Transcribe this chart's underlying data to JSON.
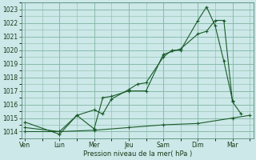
{
  "background_color": "#cce8e8",
  "grid_color": "#88bbaa",
  "line_color": "#1a5c2a",
  "xlabel": "Pression niveau de la mer( hPa )",
  "ylim": [
    1013.5,
    1023.5
  ],
  "yticks": [
    1014,
    1015,
    1016,
    1017,
    1018,
    1019,
    1020,
    1021,
    1022,
    1023
  ],
  "xtick_pos": [
    0,
    1,
    2,
    3,
    4,
    5,
    6
  ],
  "xtick_labels": [
    "Ven",
    "Lun",
    "Mer",
    "Jeu",
    "Sam",
    "Dim",
    "Mar"
  ],
  "series1_x": [
    0,
    1,
    1.5,
    2,
    2.25,
    2.5,
    3,
    3.25,
    3.5,
    4,
    4.25,
    4.5,
    5,
    5.25,
    5.5,
    5.75,
    6
  ],
  "series1_y": [
    1014.7,
    1013.8,
    1015.2,
    1015.6,
    1015.3,
    1016.4,
    1017.1,
    1017.5,
    1017.6,
    1019.5,
    1020.0,
    1020.0,
    1022.2,
    1023.2,
    1021.8,
    1019.2,
    1016.3
  ],
  "series2_x": [
    0,
    1,
    1.5,
    2,
    2.25,
    2.5,
    3,
    3.5,
    4,
    4.5,
    5,
    5.25,
    5.5,
    5.75,
    6,
    6.25
  ],
  "series2_y": [
    1014.3,
    1014.0,
    1015.2,
    1014.2,
    1016.5,
    1016.6,
    1017.0,
    1017.0,
    1019.7,
    1020.1,
    1021.2,
    1021.4,
    1022.2,
    1022.2,
    1016.2,
    1015.3
  ],
  "series3_x": [
    0,
    1,
    2,
    3,
    4,
    5,
    6,
    6.5
  ],
  "series3_y": [
    1014.0,
    1014.0,
    1014.1,
    1014.3,
    1014.5,
    1014.6,
    1015.0,
    1015.2
  ],
  "figsize": [
    3.2,
    2.0
  ],
  "dpi": 100
}
